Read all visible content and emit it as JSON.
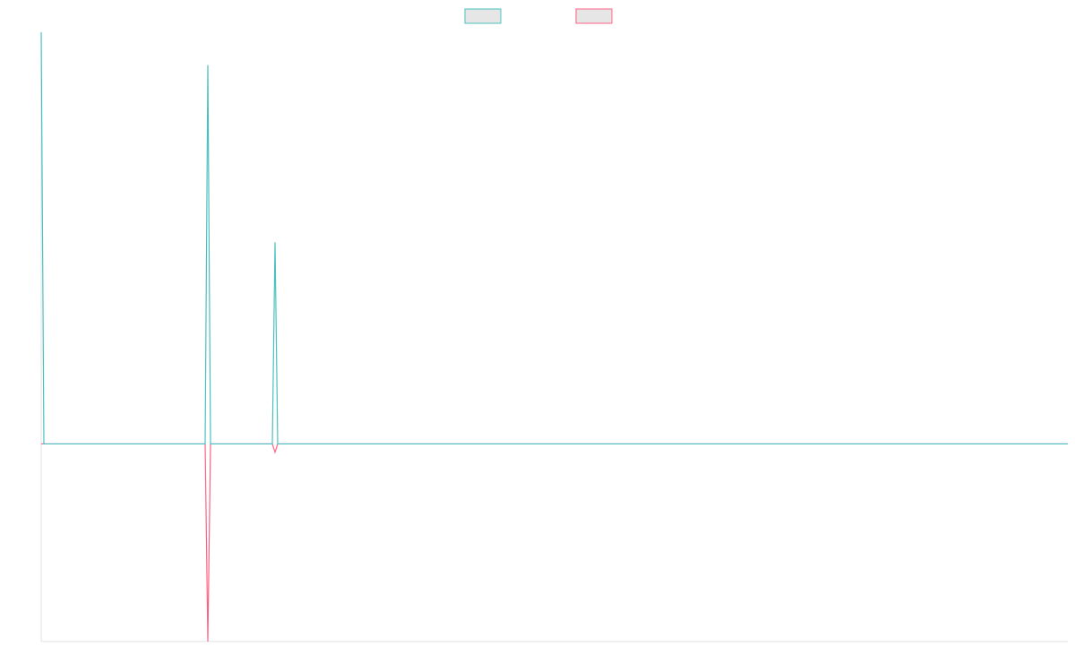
{
  "chart_data": {
    "type": "line",
    "xlim": [
      0,
      382
    ],
    "ylim": [
      -48,
      100
    ],
    "legend": "top",
    "series": [
      {
        "color": "#4bc0c0",
        "x": [
          0,
          1,
          39,
          61,
          62,
          63,
          86,
          87,
          88,
          382
        ],
        "values": [
          100,
          0,
          0,
          0,
          92,
          0,
          0,
          49,
          0,
          0
        ]
      },
      {
        "color": "#ff6384",
        "x": [
          0,
          1,
          39,
          61,
          62,
          63,
          86,
          87,
          88,
          382
        ],
        "values": [
          0,
          0,
          0,
          0,
          -48,
          0,
          0,
          -2,
          0,
          0
        ]
      }
    ]
  }
}
